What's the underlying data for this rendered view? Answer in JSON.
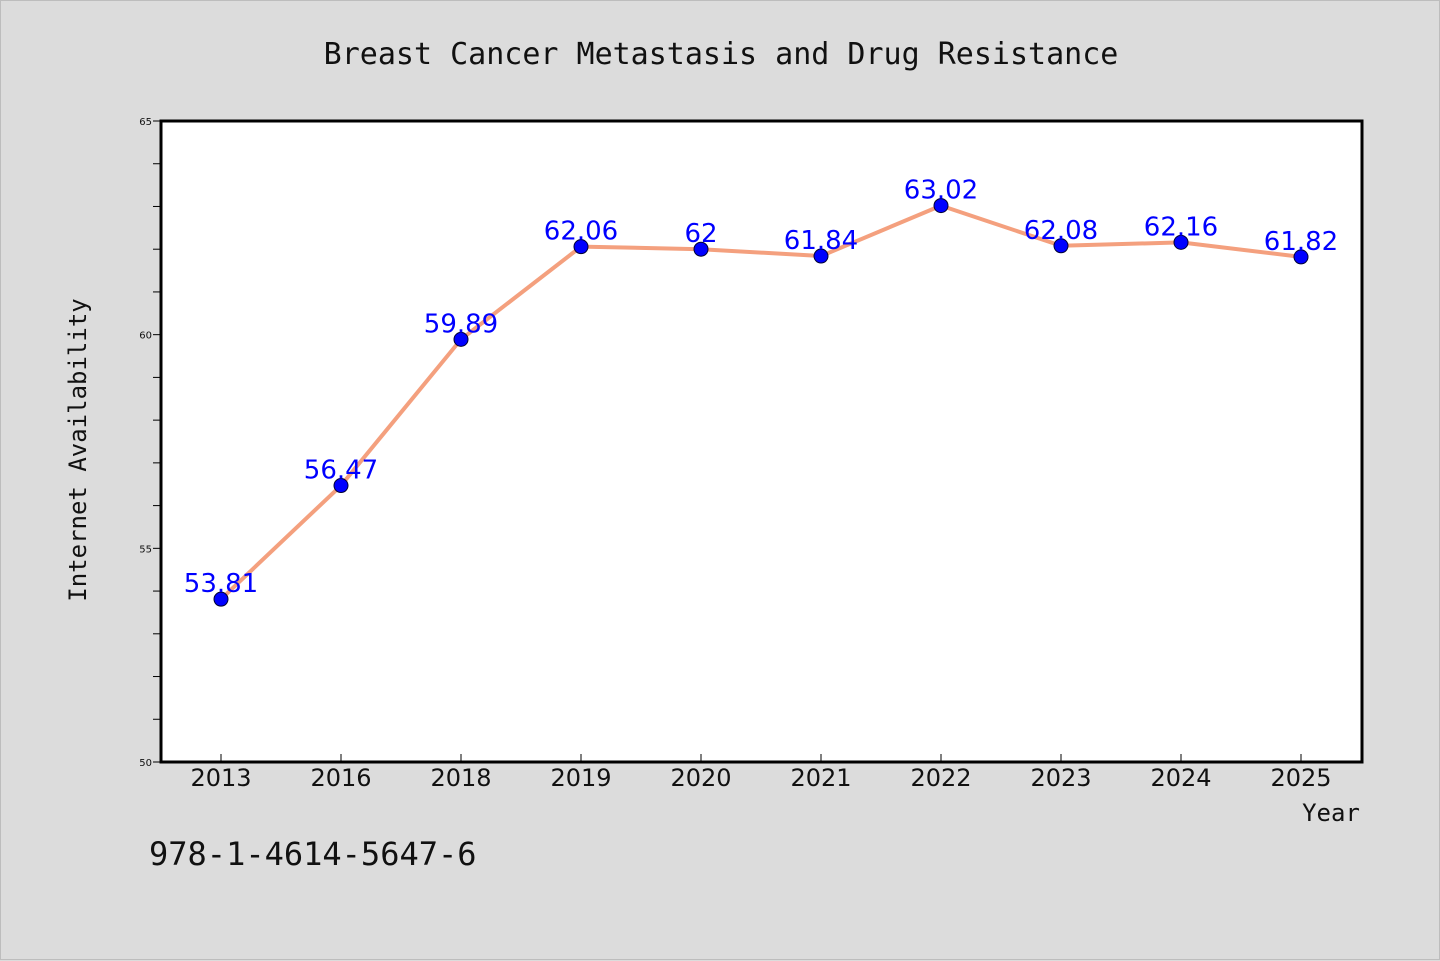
{
  "chart_data": {
    "type": "line",
    "title": "Breast Cancer Metastasis and Drug Resistance",
    "xlabel": "Year",
    "ylabel": "Internet Availability",
    "categories": [
      "2013",
      "2016",
      "2018",
      "2019",
      "2020",
      "2021",
      "2022",
      "2023",
      "2024",
      "2025"
    ],
    "series": [
      {
        "values": [
          53.81,
          56.47,
          59.89,
          62.06,
          62,
          61.84,
          63.02,
          62.08,
          62.16,
          61.82
        ],
        "labels": [
          "53.81",
          "56.47",
          "59.89",
          "62.06",
          "62",
          "61.84",
          "63.02",
          "62.08",
          "62.16",
          "61.82"
        ],
        "line_color": "#f4a07e",
        "marker_color": "#0000ff"
      }
    ],
    "ylim": [
      50,
      65
    ],
    "yticks": [
      "50",
      "55",
      "60",
      "65"
    ],
    "yminor_step": 1,
    "grid": false,
    "legend": "none"
  },
  "footer": {
    "code": "978-1-4614-5647-6"
  },
  "colors": {
    "background": "#dcdcdc",
    "plot_background": "#ffffff",
    "data_label": "#0000ff"
  }
}
